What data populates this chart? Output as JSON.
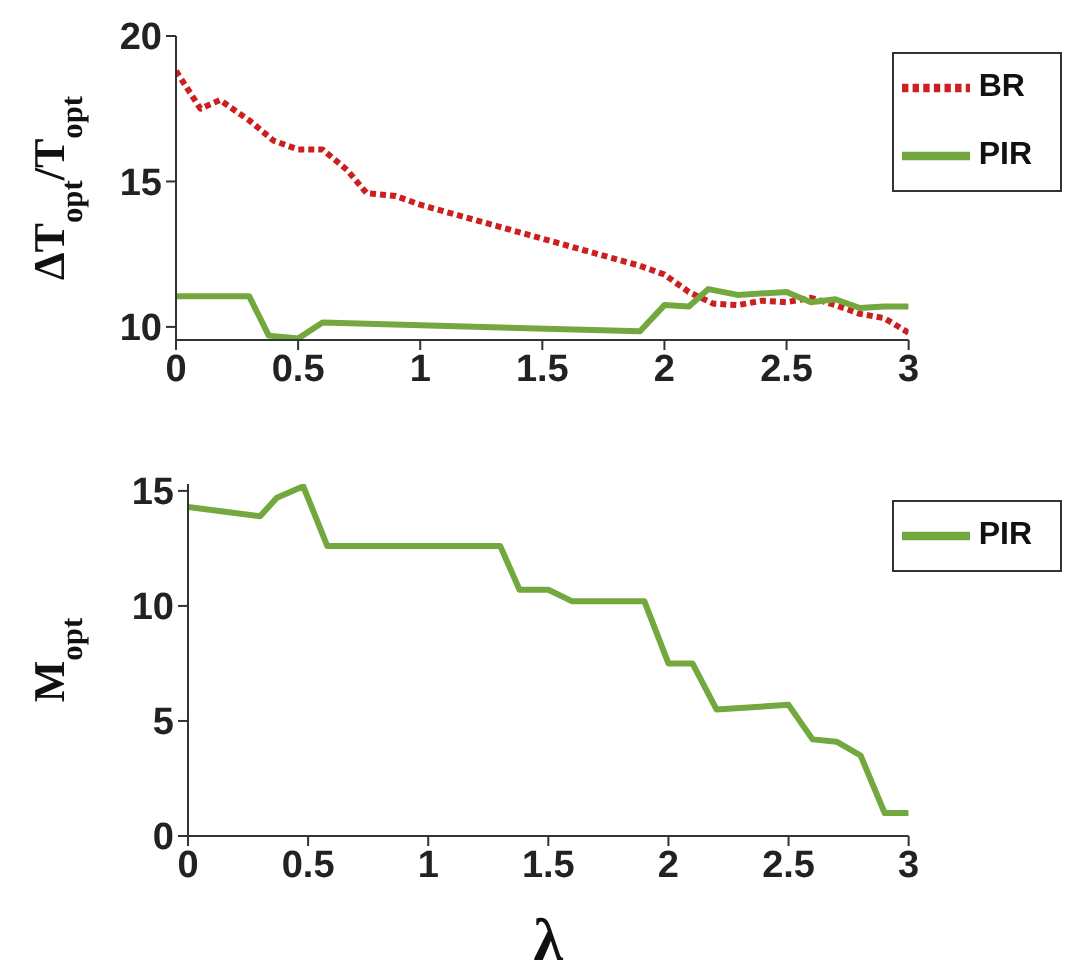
{
  "chart_data": [
    {
      "type": "line",
      "ylabel": "ΔT$_{opt}$/T$_{opt}$",
      "xlim": [
        0,
        3
      ],
      "xticks": [
        0,
        0.5,
        1,
        1.5,
        2,
        2.5,
        3
      ],
      "ylim": [
        9.55,
        20
      ],
      "yticks": [
        10,
        15,
        20
      ],
      "grid": false,
      "legend": "top right",
      "marker": "none",
      "series": [
        {
          "name": "BR",
          "color": "#cc1f1f",
          "line_style": "dotted",
          "x": [
            0,
            0.1,
            0.18,
            0.3,
            0.4,
            0.5,
            0.6,
            0.7,
            0.78,
            0.9,
            1,
            1.9,
            2,
            2.1,
            2.2,
            2.3,
            2.4,
            2.5,
            2.6,
            2.7,
            2.8,
            2.9,
            3
          ],
          "values": [
            18.8,
            17.5,
            17.8,
            17.1,
            16.4,
            16.1,
            16.1,
            15.4,
            14.6,
            14.5,
            14.2,
            12.1,
            11.8,
            11.2,
            10.8,
            10.75,
            10.9,
            10.85,
            11,
            10.75,
            10.45,
            10.3,
            9.8
          ]
        },
        {
          "name": "PIR",
          "color": "#72a83e",
          "line_style": "solid",
          "x": [
            0,
            0.3,
            0.38,
            0.5,
            0.6,
            1.9,
            2,
            2.1,
            2.18,
            2.3,
            2.5,
            2.6,
            2.7,
            2.8,
            2.9,
            3
          ],
          "values": [
            11.05,
            11.05,
            9.7,
            9.6,
            10.15,
            9.85,
            10.75,
            10.7,
            11.3,
            11.1,
            11.2,
            10.85,
            10.95,
            10.65,
            10.7,
            10.7
          ]
        }
      ]
    },
    {
      "type": "line",
      "xlabel": "λ",
      "ylabel": "M$_{opt}$",
      "xlim": [
        0,
        3
      ],
      "xticks": [
        0,
        0.5,
        1,
        1.5,
        2,
        2.5,
        3
      ],
      "ylim": [
        0,
        15.3
      ],
      "yticks": [
        0,
        5,
        10,
        15
      ],
      "grid": false,
      "legend": "top right",
      "marker": "none",
      "series": [
        {
          "name": "PIR",
          "color": "#72a83e",
          "line_style": "solid",
          "x": [
            0,
            0.3,
            0.37,
            0.48,
            0.58,
            1.3,
            1.38,
            1.5,
            1.6,
            1.9,
            2,
            2.1,
            2.2,
            2.5,
            2.6,
            2.7,
            2.8,
            2.9,
            3
          ],
          "values": [
            14.3,
            13.9,
            14.7,
            15.2,
            12.6,
            12.6,
            10.7,
            10.7,
            10.2,
            10.2,
            7.5,
            7.5,
            5.5,
            5.7,
            4.2,
            4.1,
            3.5,
            1,
            1
          ]
        }
      ]
    }
  ]
}
